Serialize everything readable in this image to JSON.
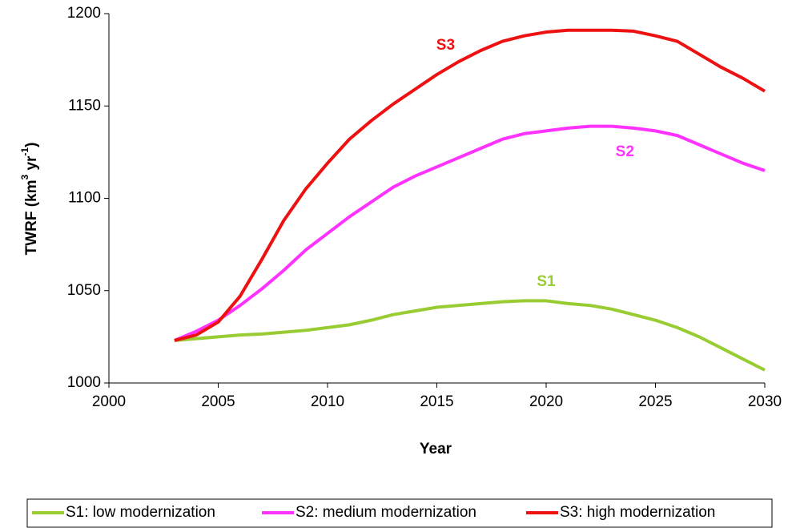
{
  "chart_data": {
    "type": "line",
    "xlabel": "Year",
    "ylabel_parts": [
      "TWRF (km",
      "3",
      " yr",
      "-1",
      ")"
    ],
    "x": [
      2003,
      2004,
      2005,
      2006,
      2007,
      2008,
      2009,
      2010,
      2011,
      2012,
      2013,
      2014,
      2015,
      2016,
      2017,
      2018,
      2019,
      2020,
      2021,
      2022,
      2023,
      2024,
      2025,
      2026,
      2027,
      2028,
      2029,
      2030
    ],
    "series": [
      {
        "name": "S1: low modernization",
        "color": "#99cc33",
        "values": [
          1023,
          1024,
          1025,
          1026,
          1026.5,
          1027.5,
          1028.5,
          1030,
          1031.5,
          1034,
          1037,
          1039,
          1041,
          1042,
          1043,
          1044,
          1044.5,
          1044.5,
          1043,
          1042,
          1040,
          1037,
          1034,
          1030,
          1025,
          1019,
          1013,
          1007
        ]
      },
      {
        "name": "S2: medium modernization",
        "color": "#ff33ff",
        "values": [
          1023,
          1028,
          1034,
          1042,
          1051,
          1061,
          1072,
          1081,
          1090,
          1098,
          1106,
          1112,
          1117,
          1122,
          1127,
          1132,
          1135,
          1136.5,
          1138,
          1139,
          1139,
          1138,
          1136.5,
          1134,
          1129,
          1124,
          1119,
          1115
        ]
      },
      {
        "name": "S3: high modernization",
        "color": "#ee1111",
        "values": [
          1023,
          1026,
          1033,
          1047,
          1067,
          1088,
          1105,
          1119,
          1132,
          1142,
          1151,
          1159,
          1167,
          1174,
          1180,
          1185,
          1188,
          1190,
          1191,
          1191,
          1191,
          1190.5,
          1188,
          1185,
          1178,
          1171,
          1165,
          1158
        ]
      }
    ],
    "annotations": [
      {
        "text": "S3",
        "x": 2015.4,
        "y": 1182.6,
        "color": "#ee1111"
      },
      {
        "text": "S2",
        "x": 2023.6,
        "y": 1125,
        "color": "#ff33ff"
      },
      {
        "text": "S1",
        "x": 2020,
        "y": 1054.6,
        "color": "#99cc33"
      }
    ],
    "xlim": [
      2000,
      2030
    ],
    "xticks": [
      2000,
      2005,
      2010,
      2015,
      2020,
      2025,
      2030
    ],
    "ylim": [
      1000,
      1200
    ],
    "yticks": [
      1000,
      1050,
      1100,
      1150,
      1200
    ],
    "grid": false,
    "legend": "bottom"
  }
}
